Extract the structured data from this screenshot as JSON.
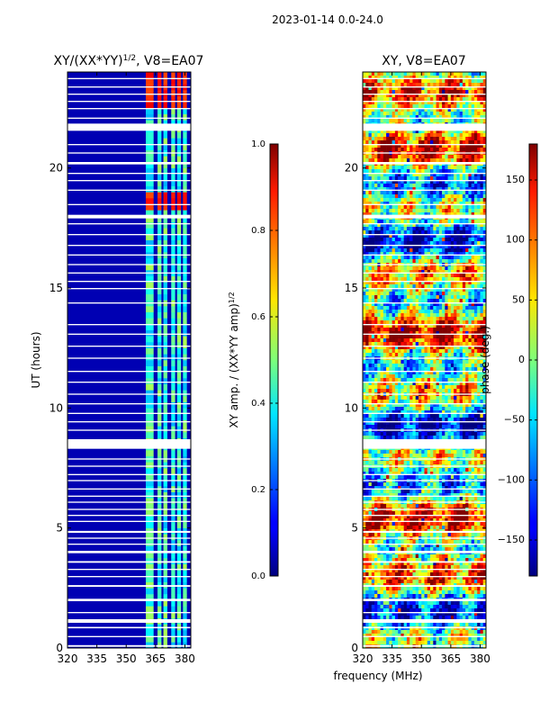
{
  "suptitle": "2023-01-14 0.0-24.0",
  "shared_xlabel": "frequency (MHz)",
  "chart_data": [
    {
      "type": "heatmap",
      "title_main": "XY/(XX*YY)",
      "title_exp": "1/2",
      "title_tail": ", V8=EA07",
      "xlabel": "",
      "ylabel": "UT (hours)",
      "xlim": [
        320,
        383
      ],
      "ylim": [
        0,
        24
      ],
      "xticks": [
        320,
        335,
        350,
        365,
        380
      ],
      "yticks": [
        0,
        5,
        10,
        15,
        20
      ],
      "colorbar": {
        "label_main": "XY amp. / (XX*YY amp)",
        "label_exp": "1/2",
        "range": [
          0.0,
          1.0
        ],
        "ticks": [
          "0.0",
          "0.2",
          "0.4",
          "0.6",
          "0.8",
          "1.0"
        ],
        "tick_values": [
          0.0,
          0.2,
          0.4,
          0.6,
          0.8,
          1.0
        ],
        "colormap": "jet"
      },
      "description_values": {
        "background_level": 0.05,
        "band_level_range": [
          0.3,
          0.55
        ],
        "band_freq_ranges_mhz": [
          [
            360,
            364
          ],
          [
            366,
            368
          ],
          [
            369,
            371
          ],
          [
            373,
            375
          ],
          [
            376,
            378
          ],
          [
            379,
            381
          ]
        ],
        "hot_hours": [
          [
            18.2,
            18.8
          ],
          [
            22.3,
            23.3
          ],
          [
            23.4,
            24.0
          ]
        ],
        "hot_level": 0.9
      }
    },
    {
      "type": "heatmap",
      "title_main": "XY, V8=EA07",
      "xlabel": "",
      "ylabel": "",
      "xlim": [
        320,
        383
      ],
      "ylim": [
        0,
        24
      ],
      "xticks": [
        320,
        335,
        350,
        365,
        380
      ],
      "yticks": [
        0,
        5,
        10,
        15,
        20
      ],
      "colorbar": {
        "label_main": "phase (deg.)",
        "range": [
          -180,
          180
        ],
        "ticks": [
          "150",
          "100",
          "50",
          "0",
          "−50",
          "−100",
          "−150"
        ],
        "tick_values": [
          150,
          100,
          50,
          0,
          -50,
          -100,
          -150
        ],
        "colormap": "jet"
      }
    }
  ],
  "flagged_gaps_hours": [
    [
      0.05,
      0.12
    ],
    [
      0.45,
      0.5
    ],
    [
      0.82,
      0.88
    ],
    [
      1.05,
      1.2
    ],
    [
      1.45,
      1.5
    ],
    [
      1.95,
      2.05
    ],
    [
      2.55,
      2.62
    ],
    [
      2.95,
      3.0
    ],
    [
      3.25,
      3.3
    ],
    [
      3.55,
      3.62
    ],
    [
      3.95,
      4.05
    ],
    [
      4.3,
      4.35
    ],
    [
      4.55,
      4.6
    ],
    [
      4.8,
      4.88
    ],
    [
      5.25,
      5.3
    ],
    [
      5.5,
      5.55
    ],
    [
      5.75,
      5.8
    ],
    [
      6.05,
      6.1
    ],
    [
      6.3,
      6.35
    ],
    [
      6.6,
      6.65
    ],
    [
      6.95,
      7.0
    ],
    [
      7.2,
      7.25
    ],
    [
      7.55,
      7.6
    ],
    [
      7.85,
      7.9
    ],
    [
      8.3,
      8.7
    ],
    [
      9.05,
      9.1
    ],
    [
      9.4,
      9.45
    ],
    [
      9.75,
      9.8
    ],
    [
      10.15,
      10.2
    ],
    [
      10.55,
      10.6
    ],
    [
      11.05,
      11.1
    ],
    [
      11.5,
      11.55
    ],
    [
      12.05,
      12.1
    ],
    [
      12.55,
      12.6
    ],
    [
      13.05,
      13.1
    ],
    [
      13.45,
      13.5
    ],
    [
      14.35,
      14.4
    ],
    [
      14.95,
      15.0
    ],
    [
      15.25,
      15.3
    ],
    [
      15.6,
      15.65
    ],
    [
      15.95,
      16.0
    ],
    [
      16.35,
      16.4
    ],
    [
      16.75,
      16.8
    ],
    [
      17.2,
      17.25
    ],
    [
      17.65,
      17.7
    ],
    [
      17.9,
      18.05
    ],
    [
      18.45,
      18.5
    ],
    [
      19.05,
      19.1
    ],
    [
      19.45,
      19.5
    ],
    [
      19.75,
      19.8
    ],
    [
      20.15,
      20.25
    ],
    [
      20.6,
      20.65
    ],
    [
      20.95,
      21.0
    ],
    [
      21.55,
      21.85
    ],
    [
      22.05,
      22.1
    ],
    [
      22.45,
      22.5
    ],
    [
      22.75,
      22.8
    ],
    [
      23.05,
      23.1
    ],
    [
      23.35,
      23.4
    ],
    [
      23.7,
      23.75
    ]
  ]
}
